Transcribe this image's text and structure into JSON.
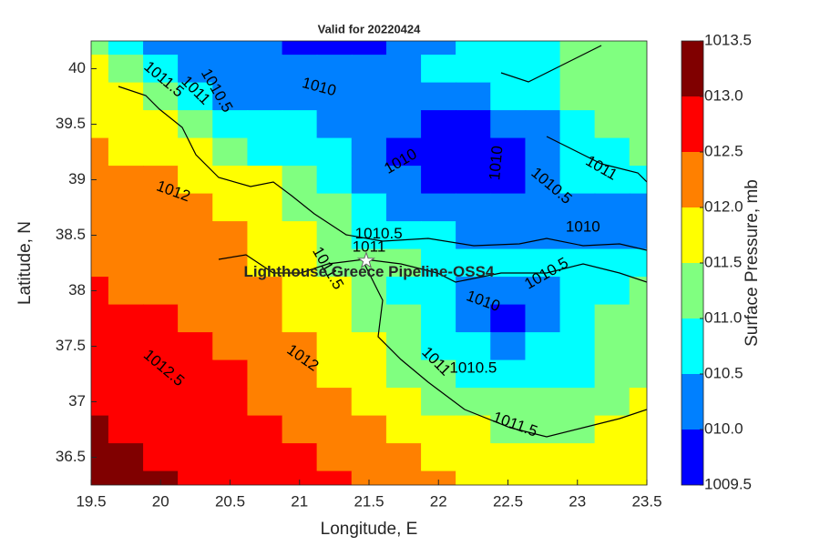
{
  "chart_data": {
    "type": "contour",
    "title": "Valid for 20220424",
    "xlabel": "Longitude, E",
    "ylabel": "Latitude, N",
    "colorbar_label": "Surface Pressure, mb",
    "xlim": [
      19.5,
      23.5
    ],
    "ylim": [
      36.25,
      40.25
    ],
    "xticks": [
      19.5,
      20,
      20.5,
      21,
      21.5,
      22,
      22.5,
      23,
      23.5
    ],
    "yticks": [
      36.5,
      37,
      37.5,
      38,
      38.5,
      39,
      39.5,
      40
    ],
    "x": [
      19.5,
      19.75,
      20,
      20.25,
      20.5,
      20.75,
      21,
      21.25,
      21.5,
      21.75,
      22,
      22.25,
      22.5,
      22.75,
      23,
      23.25,
      23.5
    ],
    "y": [
      40.25,
      40,
      39.75,
      39.5,
      39.25,
      39,
      38.75,
      38.5,
      38.25,
      38,
      37.75,
      37.5,
      37.25,
      37,
      36.75,
      36.5,
      36.25
    ],
    "z": [
      [
        1011.2,
        1010.8,
        1010.3,
        1010.2,
        1010.1,
        1010.0,
        1009.8,
        1009.8,
        1009.9,
        1010.2,
        1010.3,
        1010.6,
        1010.7,
        1010.7,
        1011.1,
        1011.2,
        1011.2
      ],
      [
        1011.7,
        1011.3,
        1010.7,
        1010.4,
        1010.2,
        1010.2,
        1010.1,
        1010.0,
        1010.1,
        1010.3,
        1010.6,
        1010.7,
        1010.8,
        1010.8,
        1011.1,
        1011.2,
        1011.2
      ],
      [
        1011.8,
        1011.6,
        1011.2,
        1010.7,
        1010.4,
        1010.3,
        1010.3,
        1010.3,
        1010.4,
        1010.3,
        1010.3,
        1010.4,
        1010.5,
        1010.7,
        1011.0,
        1011.2,
        1011.3
      ],
      [
        1011.9,
        1011.8,
        1011.6,
        1011.2,
        1010.8,
        1010.6,
        1010.5,
        1010.4,
        1010.3,
        1010.0,
        1009.9,
        1009.9,
        1010.0,
        1010.4,
        1010.7,
        1011.0,
        1011.2
      ],
      [
        1012.0,
        1011.9,
        1011.8,
        1011.5,
        1011.2,
        1010.9,
        1010.7,
        1010.5,
        1010.2,
        1009.9,
        1009.8,
        1009.8,
        1009.9,
        1010.3,
        1010.7,
        1010.9,
        1011.0
      ],
      [
        1012.1,
        1012.05,
        1012.0,
        1011.9,
        1011.7,
        1011.5,
        1011.2,
        1010.8,
        1010.4,
        1010.0,
        1009.8,
        1009.8,
        1009.9,
        1010.4,
        1010.6,
        1010.8,
        1010.9
      ],
      [
        1012.2,
        1012.15,
        1012.1,
        1012.0,
        1011.9,
        1011.7,
        1011.4,
        1011.1,
        1010.7,
        1010.4,
        1010.2,
        1010.1,
        1010.1,
        1010.3,
        1010.2,
        1010.0,
        1010.3
      ],
      [
        1012.3,
        1012.25,
        1012.2,
        1012.1,
        1012.0,
        1011.8,
        1011.5,
        1011.2,
        1010.9,
        1010.6,
        1010.5,
        1010.4,
        1010.3,
        1010.3,
        1010.2,
        1010.0,
        1010.3
      ],
      [
        1012.4,
        1012.35,
        1012.3,
        1012.2,
        1012.1,
        1011.9,
        1011.6,
        1011.3,
        1011.05,
        1011.1,
        1010.9,
        1010.7,
        1010.6,
        1010.5,
        1010.5,
        1010.6,
        1010.7
      ],
      [
        1012.5,
        1012.45,
        1012.4,
        1012.3,
        1012.2,
        1012.0,
        1011.8,
        1011.5,
        1011.2,
        1010.9,
        1010.6,
        1010.3,
        1010.1,
        1010.4,
        1010.7,
        1010.9,
        1011.0
      ],
      [
        1012.6,
        1012.55,
        1012.5,
        1012.4,
        1012.3,
        1012.1,
        1011.9,
        1011.6,
        1011.3,
        1011.0,
        1010.6,
        1010.1,
        1009.9,
        1010.3,
        1010.7,
        1011.0,
        1011.2
      ],
      [
        1012.7,
        1012.65,
        1012.6,
        1012.5,
        1012.4,
        1012.2,
        1012.0,
        1011.8,
        1011.5,
        1011.2,
        1010.9,
        1010.5,
        1010.3,
        1010.5,
        1010.8,
        1011.1,
        1011.3
      ],
      [
        1012.8,
        1012.75,
        1012.7,
        1012.6,
        1012.5,
        1012.3,
        1012.1,
        1011.95,
        1011.7,
        1011.4,
        1011.1,
        1010.8,
        1010.6,
        1010.7,
        1010.9,
        1011.2,
        1011.4
      ],
      [
        1012.9,
        1012.85,
        1012.8,
        1012.7,
        1012.6,
        1012.45,
        1012.3,
        1012.1,
        1011.9,
        1011.7,
        1011.4,
        1011.2,
        1011.0,
        1011.0,
        1011.1,
        1011.3,
        1011.5
      ],
      [
        1013.0,
        1012.95,
        1012.9,
        1012.8,
        1012.7,
        1012.6,
        1012.4,
        1012.2,
        1012.05,
        1011.9,
        1011.7,
        1011.5,
        1011.4,
        1011.4,
        1011.4,
        1011.5,
        1011.6
      ],
      [
        1013.1,
        1013.0,
        1012.95,
        1012.9,
        1012.8,
        1012.7,
        1012.55,
        1012.4,
        1012.2,
        1012.05,
        1011.9,
        1011.75,
        1011.6,
        1011.6,
        1011.6,
        1011.65,
        1011.7
      ],
      [
        1013.2,
        1013.1,
        1013.05,
        1012.95,
        1012.9,
        1012.8,
        1012.65,
        1012.5,
        1012.35,
        1012.2,
        1012.05,
        1011.9,
        1011.8,
        1011.75,
        1011.7,
        1011.75,
        1011.8
      ]
    ],
    "levels": [
      1009.5,
      1010,
      1010.5,
      1011,
      1011.5,
      1012,
      1012.5,
      1013,
      1013.5
    ],
    "colors": [
      "#0000ff",
      "#0080ff",
      "#00ffff",
      "#80ff80",
      "#ffff00",
      "#ff8000",
      "#ff0000",
      "#800000"
    ],
    "cticks": [
      1009.5,
      {
        "value": 1010,
        "label": "010.0"
      },
      {
        "value": 1010.5,
        "label": "010.5"
      },
      {
        "value": 1011,
        "label": "011.0"
      },
      {
        "value": 1011.5,
        "label": "011.5"
      },
      {
        "value": 1012,
        "label": "012.0"
      },
      {
        "value": 1012.5,
        "label": "012.5"
      },
      {
        "value": 1013,
        "label": "013.0"
      },
      1013.5
    ],
    "contour_labels": [
      {
        "value": 1010,
        "x": 21.14,
        "y": 39.83
      },
      {
        "value": 1011.5,
        "x": 20.02,
        "y": 39.9
      },
      {
        "value": 1011,
        "x": 20.25,
        "y": 39.8
      },
      {
        "value": 1010.5,
        "x": 20.4,
        "y": 39.8
      },
      {
        "value": 1010,
        "x": 21.73,
        "y": 39.16
      },
      {
        "value": 1010,
        "x": 22.42,
        "y": 39.15
      },
      {
        "value": 1011,
        "x": 23.17,
        "y": 39.1
      },
      {
        "value": 1010.5,
        "x": 22.81,
        "y": 38.94
      },
      {
        "value": 1010,
        "x": 23.04,
        "y": 38.57
      },
      {
        "value": 1012,
        "x": 20.09,
        "y": 38.89
      },
      {
        "value": 1010.5,
        "x": 21.57,
        "y": 38.51
      },
      {
        "value": 1011,
        "x": 21.5,
        "y": 38.39
      },
      {
        "value": 1011.5,
        "x": 21.2,
        "y": 38.2
      },
      {
        "value": 1010.5,
        "x": 22.78,
        "y": 38.15
      },
      {
        "value": 1010,
        "x": 22.32,
        "y": 37.9
      },
      {
        "value": 1012.5,
        "x": 20.02,
        "y": 37.3
      },
      {
        "value": 1012,
        "x": 21.02,
        "y": 37.39
      },
      {
        "value": 1011,
        "x": 21.98,
        "y": 37.36
      },
      {
        "value": 1010.5,
        "x": 22.25,
        "y": 37.3
      },
      {
        "value": 1011.5,
        "x": 22.55,
        "y": 36.79
      }
    ],
    "station": {
      "name": "Lighthouse Greece Pipeline-OSS4",
      "x": 21.48,
      "y": 38.27
    }
  }
}
